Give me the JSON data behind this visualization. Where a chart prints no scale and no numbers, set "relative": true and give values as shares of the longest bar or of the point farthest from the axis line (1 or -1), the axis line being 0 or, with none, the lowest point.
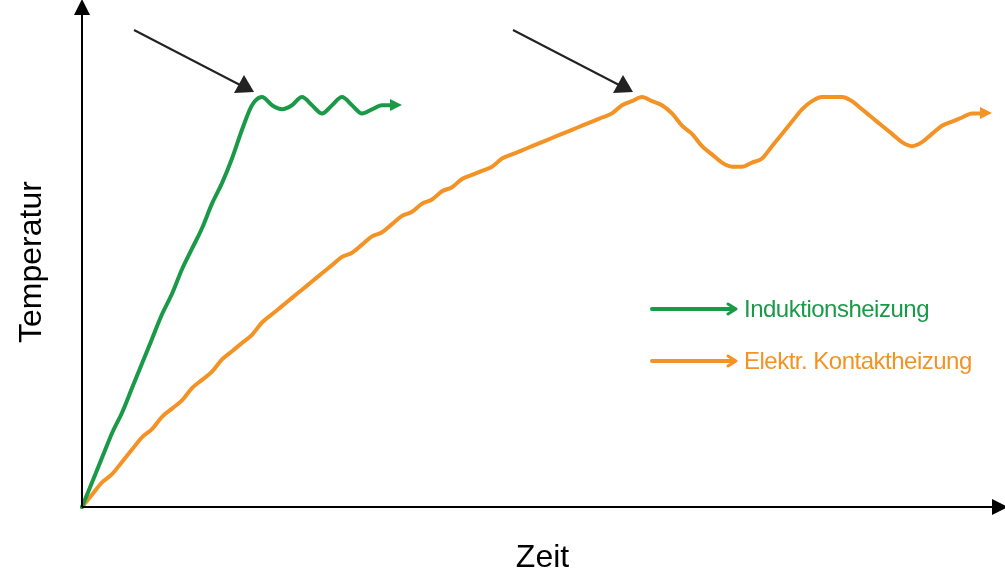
{
  "chart_data": {
    "type": "line",
    "relative": true,
    "xlabel": "Zeit",
    "ylabel": "Temperatur",
    "legend": "right",
    "marker": "none",
    "line_style": "solid",
    "categories": [
      null,
      null,
      null,
      null,
      null,
      null,
      null,
      null,
      null,
      null,
      null,
      null,
      null,
      null,
      null,
      null,
      null,
      null,
      null,
      null,
      null,
      null,
      null,
      null,
      null,
      null,
      null,
      null,
      null,
      null,
      null,
      null,
      null,
      null,
      null,
      null,
      null,
      null,
      null,
      null,
      null,
      null,
      null,
      null,
      null,
      null,
      null,
      null,
      null,
      null,
      null,
      null,
      null,
      null,
      null,
      null,
      null,
      null,
      null,
      null,
      null,
      null,
      null,
      null,
      null,
      null,
      null,
      null,
      null,
      null,
      null,
      null,
      null,
      null,
      null,
      null,
      null,
      null,
      null,
      null,
      null,
      null,
      null,
      null,
      null,
      null,
      null,
      null,
      null,
      null,
      null
    ],
    "series": [
      {
        "name": "Induktionsheizung",
        "color": "#1a9a48",
        "values": [
          0,
          0.06,
          0.12,
          0.18,
          0.23,
          0.29,
          0.35,
          0.41,
          0.47,
          0.52,
          0.58,
          0.63,
          0.68,
          0.74,
          0.79,
          0.85,
          0.92,
          0.98,
          1,
          0.98,
          0.97,
          0.98,
          1,
          0.98,
          0.96,
          0.98,
          1,
          0.98,
          0.96,
          0.97,
          0.98,
          0.98,
          null,
          null,
          null,
          null,
          null,
          null,
          null,
          null,
          null,
          null,
          null,
          null,
          null,
          null,
          null,
          null,
          null,
          null,
          null,
          null,
          null,
          null,
          null,
          null,
          null,
          null,
          null,
          null,
          null,
          null,
          null,
          null,
          null,
          null,
          null,
          null,
          null,
          null,
          null,
          null,
          null,
          null,
          null,
          null,
          null,
          null,
          null,
          null,
          null,
          null,
          null,
          null,
          null,
          null,
          null,
          null,
          null,
          null,
          null
        ]
      },
      {
        "name": "Elektr. Kontaktheizung",
        "color": "#f39325",
        "values": [
          0,
          0.03,
          0.06,
          0.08,
          0.11,
          0.14,
          0.17,
          0.19,
          0.22,
          0.24,
          0.26,
          0.29,
          0.31,
          0.33,
          0.36,
          0.38,
          0.4,
          0.42,
          0.45,
          0.47,
          0.49,
          0.51,
          0.53,
          0.55,
          0.57,
          0.59,
          0.61,
          0.62,
          0.64,
          0.66,
          0.67,
          0.69,
          0.71,
          0.72,
          0.74,
          0.75,
          0.77,
          0.78,
          0.8,
          0.81,
          0.82,
          0.83,
          0.85,
          0.86,
          0.87,
          0.88,
          0.89,
          0.9,
          0.91,
          0.92,
          0.93,
          0.94,
          0.95,
          0.96,
          0.98,
          0.99,
          1,
          0.99,
          0.98,
          0.96,
          0.93,
          0.91,
          0.88,
          0.86,
          0.84,
          0.83,
          0.83,
          0.84,
          0.85,
          0.88,
          0.91,
          0.94,
          0.97,
          0.99,
          1,
          1,
          1,
          0.99,
          0.97,
          0.95,
          0.93,
          0.91,
          0.89,
          0.88,
          0.89,
          0.91,
          0.93,
          0.94,
          0.95,
          0.96,
          0.96
        ]
      }
    ]
  }
}
